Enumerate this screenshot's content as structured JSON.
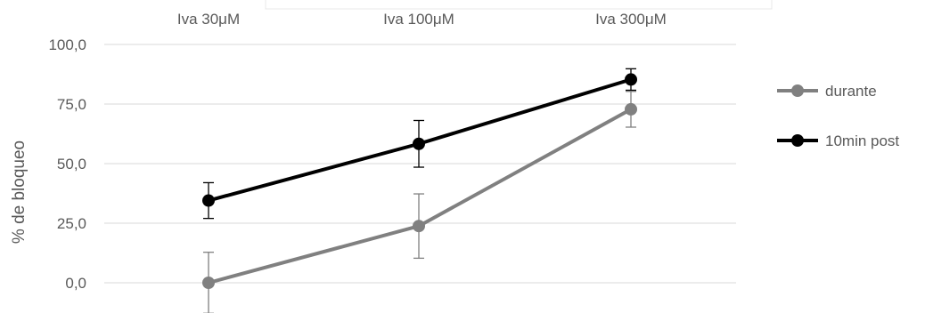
{
  "chart_data": {
    "type": "line",
    "categories": [
      "Iva 30μM",
      "Iva 100μM",
      "Iva 300μM"
    ],
    "xlabel": "",
    "ylabel": "% de bloqueo",
    "ylim": [
      0,
      100
    ],
    "yticks": [
      "0,0",
      "25,0",
      "50,0",
      "75,0",
      "100,0"
    ],
    "grid": true,
    "legend_position": "right",
    "series": [
      {
        "name": "durante",
        "color": "#808080",
        "values": [
          0.0,
          23.8,
          72.8
        ],
        "errors": [
          12.8,
          13.5,
          7.5
        ]
      },
      {
        "name": "10min post",
        "color": "#000000",
        "values": [
          34.5,
          58.3,
          85.3
        ],
        "errors": [
          7.5,
          9.8,
          4.5
        ]
      }
    ]
  }
}
